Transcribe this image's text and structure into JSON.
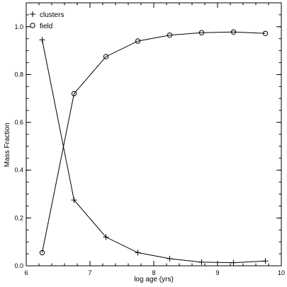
{
  "chart_data": {
    "type": "line",
    "title": "",
    "xlabel": "log age (yrs)",
    "ylabel": "Mass Fraction",
    "xlim": [
      6,
      10
    ],
    "ylim": [
      0,
      1.1
    ],
    "xticks": [
      "6",
      "7",
      "8",
      "9",
      "10"
    ],
    "yticks": [
      "0.0",
      "0.2",
      "0.4",
      "0.6",
      "0.8",
      "1.0"
    ],
    "grid": false,
    "legend_position": "top-left",
    "series": [
      {
        "name": "clusters",
        "marker": "plus",
        "x": [
          6.25,
          6.75,
          7.25,
          7.75,
          8.25,
          8.75,
          9.25,
          9.75
        ],
        "y": [
          0.945,
          0.275,
          0.12,
          0.055,
          0.03,
          0.015,
          0.013,
          0.02
        ]
      },
      {
        "name": "field",
        "marker": "circle",
        "x": [
          6.25,
          6.75,
          7.25,
          7.75,
          8.25,
          8.75,
          9.25,
          9.75
        ],
        "y": [
          0.055,
          0.72,
          0.875,
          0.94,
          0.965,
          0.975,
          0.978,
          0.972
        ]
      }
    ]
  }
}
